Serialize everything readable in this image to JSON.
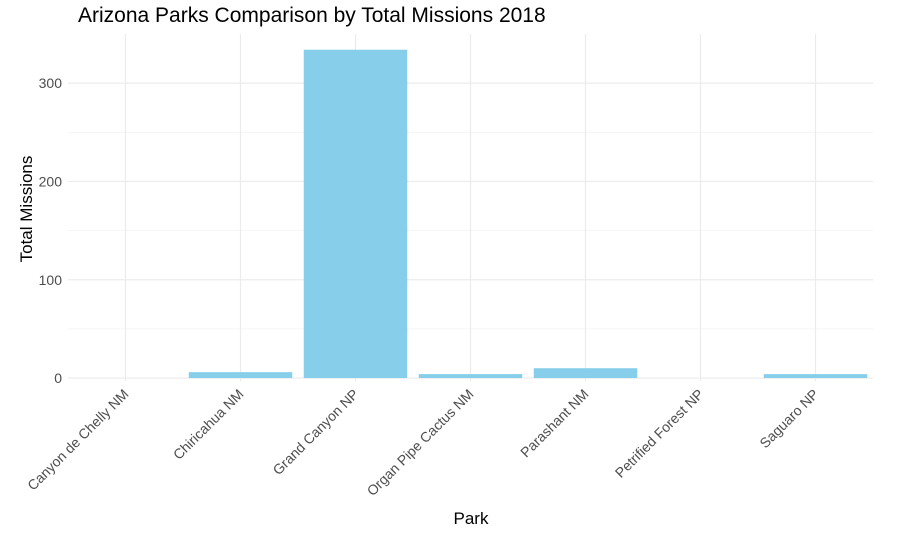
{
  "chart_data": {
    "type": "bar",
    "title": "Arizona Parks Comparison by Total Missions 2018",
    "xlabel": "Park",
    "ylabel": "Total Missions",
    "categories": [
      "Canyon de Chelly NM",
      "Chiricahua NM",
      "Grand Canyon NP",
      "Organ Pipe Cactus NM",
      "Parashant NM",
      "Petrified Forest NP",
      "Saguaro NP"
    ],
    "values": [
      0,
      6,
      334,
      4,
      10,
      0,
      4
    ],
    "yticks": [
      0,
      100,
      200,
      300
    ],
    "ylim": [
      -3,
      350
    ],
    "grid": true,
    "legend": "none",
    "colors": {
      "bar": "#87ceeb",
      "grid_major": "#ebebeb",
      "grid_minor": "#f3f3f3"
    }
  }
}
